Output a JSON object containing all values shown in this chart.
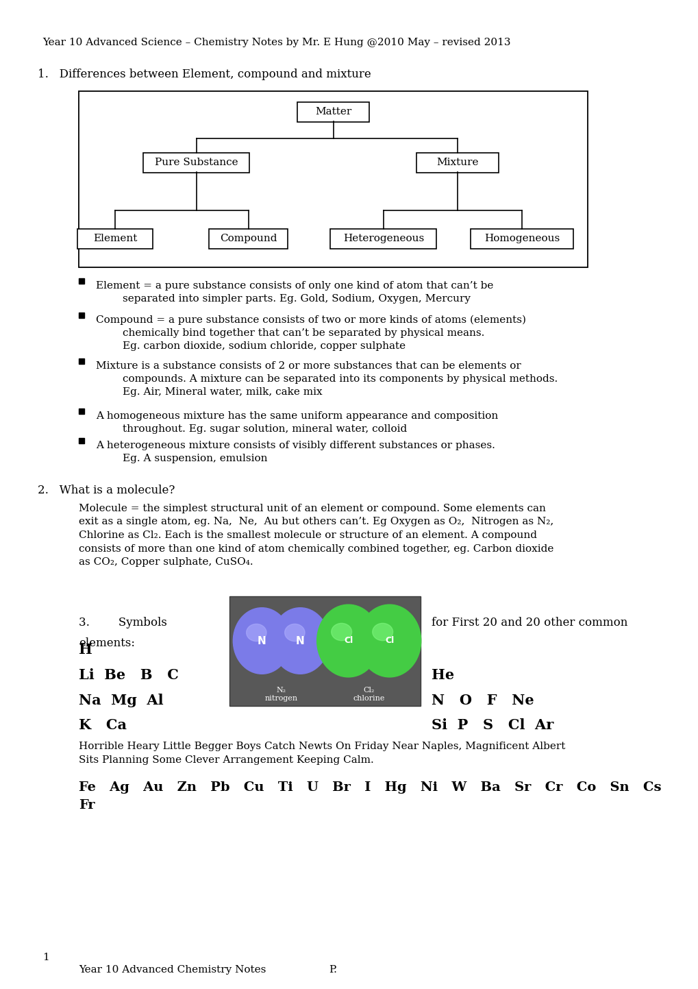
{
  "title": "Year 10 Advanced Science – Chemistry Notes by Mr. E Hung @2010 May – revised 2013",
  "section1_title": "1.   Differences between Element, compound and mixture",
  "tree_nodes": {
    "matter": "Matter",
    "pure": "Pure Substance",
    "mixture": "Mixture",
    "element": "Element",
    "compound": "Compound",
    "hetero": "Heterogeneous",
    "homo": "Homogeneous"
  },
  "bullets": [
    "Element = a pure substance consists of only one kind of atom that can’t be\n        separated into simpler parts. Eg. Gold, Sodium, Oxygen, Mercury",
    "Compound = a pure substance consists of two or more kinds of atoms (elements)\n        chemically bind together that can’t be separated by physical means.\n        Eg. carbon dioxide, sodium chloride, copper sulphate",
    "Mixture is a substance consists of 2 or more substances that can be elements or\n        compounds. A mixture can be separated into its components by physical methods.\n        Eg. Air, Mineral water, milk, cake mix",
    "A homogeneous mixture has the same uniform appearance and composition\n        throughout. Eg. sugar solution, mineral water, colloid",
    "A heterogeneous mixture consists of visibly different substances or phases.\n        Eg. A suspension, emulsion"
  ],
  "section2_title": "2.   What is a molecule?",
  "section2_body": "Molecule = the simplest structural unit of an element or compound. Some elements can\nexit as a single atom, eg. Na,  Ne,  Au but others can’t. Eg Oxygen as O₂,  Nitrogen as N₂,\nChlorine as Cl₂. Each is the smallest molecule or structure of an element. A compound\nconsists of more than one kind of atom chemically combined together, eg. Carbon dioxide\nas CO₂, Copper sulphate, CuSO₄.",
  "section3_label": "3.        Symbols",
  "section3_right1": "for First 20 and 20 other common",
  "section3_right2": "elements:",
  "elements_left": [
    "H",
    "Li  Be   B   C",
    "Na  Mg  Al",
    "K   Ca"
  ],
  "elements_right": [
    "He",
    "N   O   F   Ne",
    "Si  P   S   Cl  Ar"
  ],
  "mnemonic": "Horrible Heary Little Begger Boys Catch Newts On Friday Near Naples, Magnificent Albert\nSits Planning Some Clever Arrangement Keeping Calm.",
  "other_elements": "Fe   Ag   Au   Zn   Pb   Cu   Ti   U   Br   I   Hg   Ni   W   Ba   Sr   Cr   Co   Sn   Cs\nFr",
  "footer_num": "1",
  "footer_text": "Year 10 Advanced Chemistry Notes",
  "footer_page": "P.",
  "bg_color": "#ffffff",
  "text_color": "#000000"
}
